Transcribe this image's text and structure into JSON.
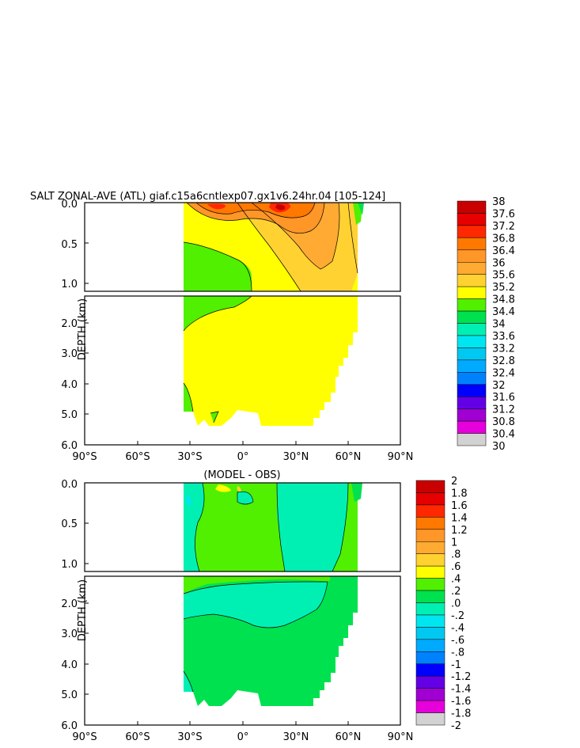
{
  "title": "SALT ZONAL-AVE (ATL) giaf.c15a6cntlexp07.gx1v6.24hr.04 [105-124]",
  "chart_data": [
    {
      "type": "heatmap",
      "title": "SALT ZONAL-AVE (ATL) giaf.c15a6cntlexp07.gx1v6.24hr.04 [105-124]",
      "ylabel": "DEPTH (km)",
      "x_ticks": [
        "90°S",
        "60°S",
        "30°S",
        "0°",
        "30°N",
        "60°N",
        "90°N"
      ],
      "y_ticks_upper": [
        "0.0",
        "0.5",
        "1.0"
      ],
      "y_ticks_lower": [
        "2.0",
        "3.0",
        "4.0",
        "5.0",
        "6.0"
      ],
      "xlim": [
        -90,
        90
      ],
      "ylim_upper": [
        0,
        1.1
      ],
      "ylim_lower": [
        1.1,
        6.0
      ],
      "colorbar": {
        "labels": [
          "38",
          "37.6",
          "37.2",
          "36.8",
          "36.4",
          "36",
          "35.6",
          "35.2",
          "34.8",
          "34.4",
          "34",
          "33.6",
          "33.2",
          "32.8",
          "32.4",
          "32",
          "31.6",
          "31.2",
          "30.8",
          "30.4",
          "30"
        ],
        "colors": [
          "#c80000",
          "#e60000",
          "#ff2800",
          "#ff7800",
          "#ff9628",
          "#ffaa32",
          "#ffd232",
          "#ffff00",
          "#50f000",
          "#00e150",
          "#00f0b4",
          "#00e6f0",
          "#00c8f0",
          "#00aaff",
          "#0082ff",
          "#0000ff",
          "#6400e6",
          "#a000d2",
          "#e600dc",
          "#d2d2d2",
          "#646464"
        ]
      }
    },
    {
      "type": "heatmap",
      "title": "(MODEL - OBS)",
      "ylabel": "DEPTH (km)",
      "x_ticks": [
        "90°S",
        "60°S",
        "30°S",
        "0°",
        "30°N",
        "60°N",
        "90°N"
      ],
      "y_ticks_upper": [
        "0.0",
        "0.5",
        "1.0"
      ],
      "y_ticks_lower": [
        "2.0",
        "3.0",
        "4.0",
        "5.0",
        "6.0"
      ],
      "xlim": [
        -90,
        90
      ],
      "ylim_upper": [
        0,
        1.1
      ],
      "ylim_lower": [
        1.1,
        6.0
      ],
      "colorbar": {
        "labels": [
          "2",
          "1.8",
          "1.6",
          "1.4",
          "1.2",
          "1",
          ".8",
          ".6",
          ".4",
          ".2",
          ".0",
          "-.2",
          "-.4",
          "-.6",
          "-.8",
          "-1",
          "-1.2",
          "-1.4",
          "-1.6",
          "-1.8",
          "-2"
        ],
        "colors": [
          "#c80000",
          "#e60000",
          "#ff2800",
          "#ff7800",
          "#ff9628",
          "#ffaa32",
          "#ffd232",
          "#ffff00",
          "#50f000",
          "#00e150",
          "#00f0b4",
          "#00e6f0",
          "#00c8f0",
          "#00aaff",
          "#0082ff",
          "#0000ff",
          "#6400e6",
          "#a000d2",
          "#e600dc",
          "#d2d2d2",
          "#646464"
        ]
      }
    }
  ]
}
